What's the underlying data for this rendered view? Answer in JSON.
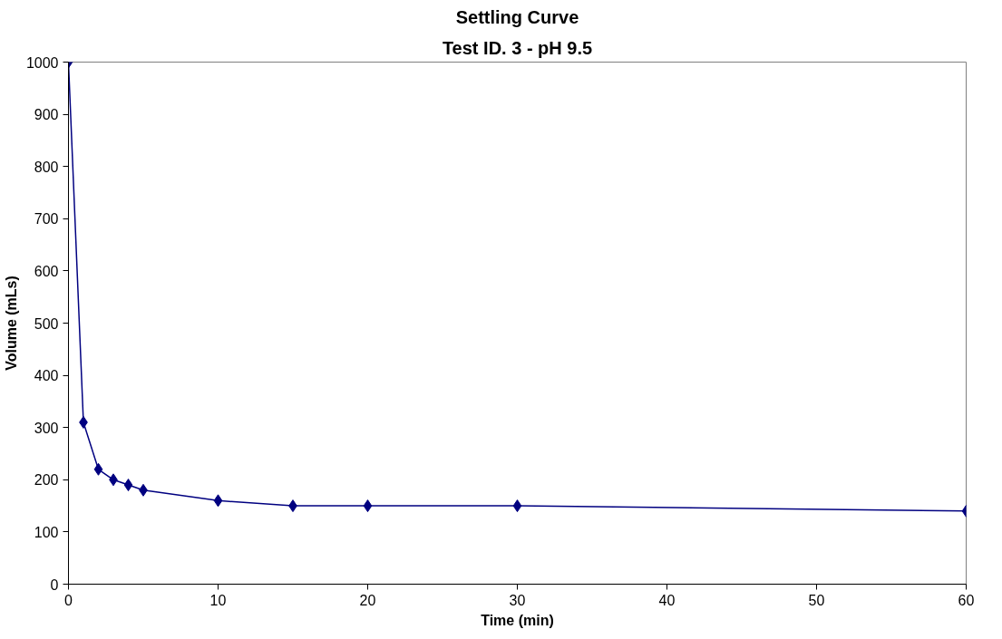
{
  "chart_data": {
    "type": "line",
    "title": "Settling Curve",
    "subtitle": "Test ID. 3 - pH 9.5",
    "xlabel": "Time (min)",
    "ylabel": "Volume (mLs)",
    "x": [
      0,
      1,
      2,
      3,
      4,
      5,
      10,
      15,
      20,
      30,
      60
    ],
    "series": [
      {
        "color": "#000080",
        "values": [
          1000,
          310,
          220,
          200,
          190,
          180,
          160,
          150,
          150,
          150,
          140
        ]
      }
    ],
    "xlim": [
      0,
      60
    ],
    "ylim": [
      0,
      1000
    ],
    "xticks": [
      0,
      10,
      20,
      30,
      40,
      50,
      60
    ],
    "yticks": [
      0,
      100,
      200,
      300,
      400,
      500,
      600,
      700,
      800,
      900,
      1000
    ],
    "grid": false,
    "marker": "diamond",
    "line_style": "solid"
  }
}
